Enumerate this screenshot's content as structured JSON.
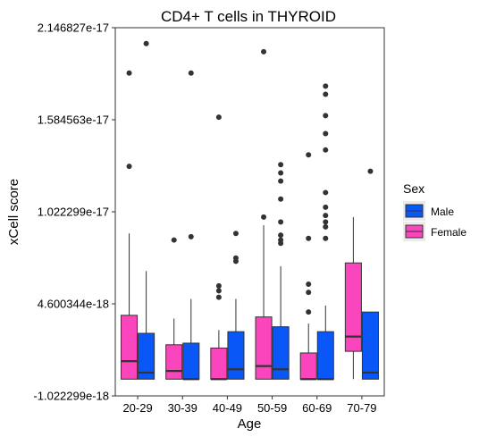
{
  "chart_data": {
    "type": "boxplot",
    "title": "CD4+ T cells in THYROID",
    "xlabel": "Age",
    "ylabel": "xCell score",
    "categories": [
      "20-29",
      "30-39",
      "40-49",
      "50-59",
      "60-69",
      "70-79"
    ],
    "y_ticks": [
      {
        "value": -1.022299e-18,
        "label": "-1.022299e-18"
      },
      {
        "value": 4.600344e-18,
        "label": "4.600344e-18"
      },
      {
        "value": 1.022299e-17,
        "label": "1.022299e-17"
      },
      {
        "value": 1.584563e-17,
        "label": "1.584563e-17"
      },
      {
        "value": 2.146827e-17,
        "label": "2.146827e-17"
      }
    ],
    "ylim": [
      -1.022299e-18,
      2.146827e-17
    ],
    "grid": false,
    "legend": {
      "title": "Sex",
      "placement": "right",
      "entries": [
        {
          "name": "Male",
          "color": "#0a57f7"
        },
        {
          "name": "Female",
          "color": "#fb45bd"
        }
      ]
    },
    "series": [
      {
        "name": "Female",
        "color": "#fb45bd",
        "boxes": [
          {
            "category": "20-29",
            "min": 0,
            "q1": 0,
            "median": 1.1e-18,
            "q3": 3.9e-18,
            "max": 8.9e-18,
            "outliers": [
              1.3e-17,
              1.87e-17
            ]
          },
          {
            "category": "30-39",
            "min": 0,
            "q1": 0,
            "median": 5e-19,
            "q3": 2.1e-18,
            "max": 3.7e-18,
            "outliers": [
              8.5e-18
            ]
          },
          {
            "category": "40-49",
            "min": 0,
            "q1": 0,
            "median": 0,
            "q3": 1.9e-18,
            "max": 3e-18,
            "outliers": [
              5e-18,
              5.4e-18,
              5.7e-18,
              1.6e-17
            ]
          },
          {
            "category": "50-59",
            "min": 0,
            "q1": 0,
            "median": 8e-19,
            "q3": 3.8e-18,
            "max": 9.4e-18,
            "outliers": [
              9.9e-18,
              2e-17
            ]
          },
          {
            "category": "60-69",
            "min": 0,
            "q1": 0,
            "median": 0,
            "q3": 1.6e-18,
            "max": 3.4e-18,
            "outliers": [
              4.1e-18,
              5.3e-18,
              5.8e-18,
              8.6e-18,
              1.37e-17
            ]
          },
          {
            "category": "70-79",
            "min": 0,
            "q1": 1.7e-18,
            "median": 2.6e-18,
            "q3": 7.1e-18,
            "max": 9.9e-18,
            "outliers": []
          }
        ]
      },
      {
        "name": "Male",
        "color": "#0a57f7",
        "boxes": [
          {
            "category": "20-29",
            "min": 0,
            "q1": 0,
            "median": 4e-19,
            "q3": 2.8e-18,
            "max": 6.6e-18,
            "outliers": [
              2.05e-17
            ]
          },
          {
            "category": "30-39",
            "min": 0,
            "q1": 0,
            "median": 0,
            "q3": 2.2e-18,
            "max": 4.9e-18,
            "outliers": [
              8.7e-18,
              1.87e-17
            ]
          },
          {
            "category": "40-49",
            "min": 0,
            "q1": 0,
            "median": 6e-19,
            "q3": 2.9e-18,
            "max": 4.9e-18,
            "outliers": [
              7.2e-18,
              7.4e-18,
              8.9e-18
            ]
          },
          {
            "category": "50-59",
            "min": 0,
            "q1": 0,
            "median": 6e-19,
            "q3": 3.2e-18,
            "max": 6.9e-18,
            "outliers": [
              8.3e-18,
              8.5e-18,
              8.8e-18,
              9.6e-18,
              1.1e-17,
              1.21e-17,
              1.26e-17,
              1.31e-17
            ]
          },
          {
            "category": "60-69",
            "min": 0,
            "q1": 0,
            "median": 0,
            "q3": 2.9e-18,
            "max": 4.5e-18,
            "outliers": [
              8.6e-18,
              9.3e-18,
              9.6e-18,
              1e-17,
              1.05e-17,
              1.14e-17,
              1.4e-17,
              1.5e-17,
              1.61e-17,
              1.74e-17,
              1.79e-17
            ]
          },
          {
            "category": "70-79",
            "min": 0,
            "q1": 0,
            "median": 4e-19,
            "q3": 4.1e-18,
            "max": 4.1e-18,
            "outliers": [
              1.27e-17
            ]
          }
        ]
      }
    ]
  }
}
